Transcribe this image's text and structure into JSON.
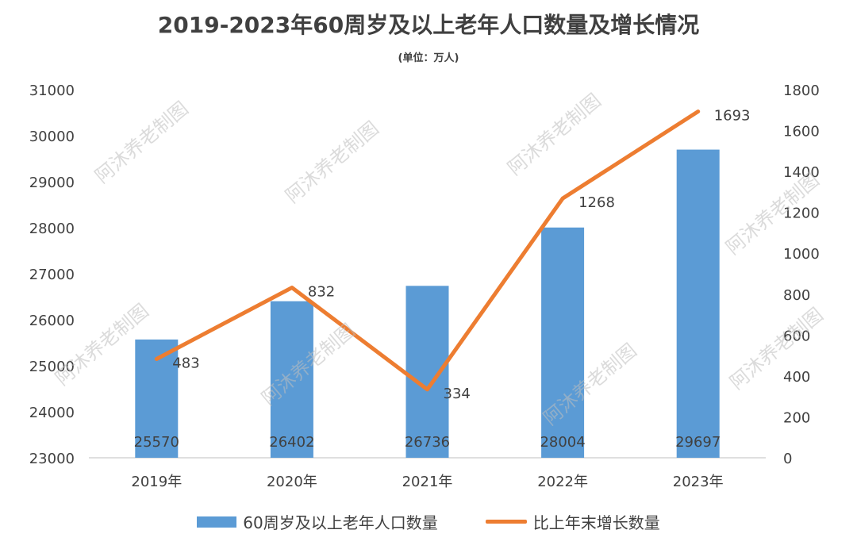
{
  "chart_data": {
    "type": "bar",
    "title": "2019-2023年60周岁及以上老年人口数量及增长情况",
    "subtitle": "(单位：万人)",
    "categories": [
      "2019年",
      "2020年",
      "2021年",
      "2022年",
      "2023年"
    ],
    "series": [
      {
        "name": "60周岁及以上老年人口数量",
        "type": "bar",
        "axis": "left",
        "values": [
          25570,
          26402,
          26736,
          28004,
          29697
        ]
      },
      {
        "name": "比上年末增长数量",
        "type": "line",
        "axis": "right",
        "values": [
          483,
          832,
          334,
          1268,
          1693
        ]
      }
    ],
    "y_left": {
      "ylim": [
        23000,
        31000
      ],
      "ticks": [
        23000,
        24000,
        25000,
        26000,
        27000,
        28000,
        29000,
        30000,
        31000
      ]
    },
    "y_right": {
      "ylim": [
        0,
        1800
      ],
      "ticks": [
        0,
        200,
        400,
        600,
        800,
        1000,
        1200,
        1400,
        1600,
        1800
      ]
    },
    "legend_position": "bottom",
    "grid": false,
    "colors": {
      "bar": "#5b9bd5",
      "line": "#ed7d31"
    }
  },
  "watermark": "阿沐养老制图"
}
